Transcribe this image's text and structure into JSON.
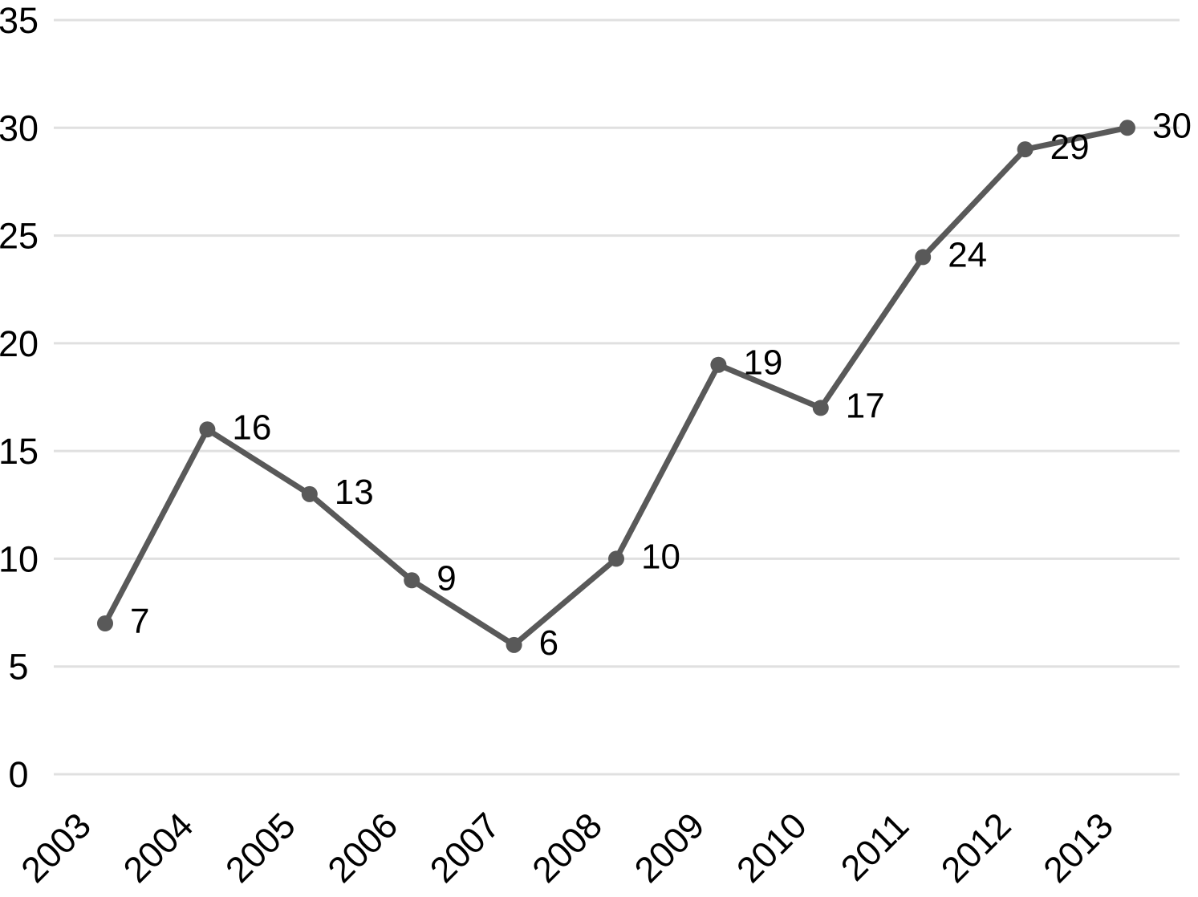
{
  "chart_data": {
    "type": "line",
    "title": "",
    "xlabel": "",
    "ylabel": "",
    "categories": [
      "2003",
      "2004",
      "2005",
      "2006",
      "2007",
      "2008",
      "2009",
      "2010",
      "2011",
      "2012",
      "2013"
    ],
    "values": [
      7,
      16,
      13,
      9,
      6,
      10,
      19,
      17,
      24,
      29,
      30
    ],
    "data_labels": [
      "7",
      "16",
      "13",
      "9",
      "6",
      "10",
      "19",
      "17",
      "24",
      "29",
      "30"
    ],
    "ylim": [
      0,
      35
    ],
    "ytick_step": 5,
    "ytick_labels": [
      "0",
      "5",
      "10",
      "15",
      "20",
      "25",
      "30",
      "35"
    ],
    "grid": "horizontal",
    "legend_position": "none",
    "x_label_rotation_deg": -45,
    "colors": {
      "line": "#595959",
      "marker": "#595959",
      "gridline": "#e0e0e0",
      "text": "#000000",
      "background": "#ffffff"
    }
  }
}
